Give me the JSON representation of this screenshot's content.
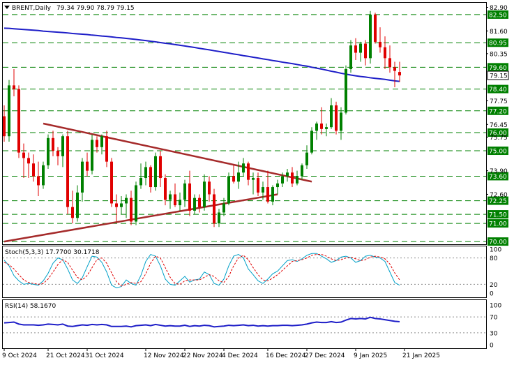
{
  "header": {
    "symbol": "BRENT,Daily",
    "ohlc": "79.34 79.90 78.79 79.15",
    "arrow_icon": "triangle-down-icon"
  },
  "colors": {
    "bull": "#008000",
    "bear": "#e00000",
    "ma": "#1e1ec8",
    "trendline": "#a52a2a",
    "level": "#008000",
    "stoch_main": "#00a0c8",
    "stoch_signal": "#e00000",
    "rsi": "#1e1ec8",
    "current_price_box": "#ffffff"
  },
  "chart_data": [
    {
      "type": "candlestick",
      "title": "BRENT,Daily",
      "ylim": [
        69.85,
        83.15
      ],
      "price_axis_ticks": [
        "82.90",
        "81.60",
        "80.95",
        "80.35",
        "79.60",
        "79.15",
        "78.40",
        "77.75",
        "77.20",
        "76.45",
        "76.00",
        "75.75",
        "75.00",
        "73.90",
        "73.60",
        "72.60",
        "72.25",
        "71.50",
        "71.00",
        "70.00"
      ],
      "levels": [
        82.5,
        80.95,
        79.6,
        78.4,
        77.2,
        76.0,
        75.0,
        73.6,
        72.25,
        71.5,
        71.0,
        70.0
      ],
      "level_labels": [
        "82.50",
        "80.95",
        "79.60",
        "78.40",
        "77.20",
        "76.00",
        "75.00",
        "73.60",
        "72.25",
        "71.50",
        "71.00",
        "70.00"
      ],
      "current_price": "79.15",
      "date_labels": [
        "9 Oct 2024",
        "21 Oct 2024",
        "31 Oct 2024",
        "12 Nov 2024",
        "22 Nov 2024",
        "4 Dec 2024",
        "16 Dec 2024",
        "27 Dec 2024",
        "9 Jan 2025",
        "21 Jan 2025"
      ],
      "candles": [
        [
          76.9,
          77.5,
          75.5,
          75.8
        ],
        [
          75.8,
          78.9,
          75.5,
          78.6
        ],
        [
          78.6,
          79.5,
          78.0,
          78.4
        ],
        [
          78.4,
          78.6,
          74.6,
          74.9
        ],
        [
          74.9,
          75.4,
          73.5,
          74.6
        ],
        [
          74.6,
          74.9,
          73.5,
          74.3
        ],
        [
          74.3,
          74.8,
          73.3,
          73.6
        ],
        [
          73.6,
          74.4,
          72.5,
          73.1
        ],
        [
          73.1,
          74.4,
          72.9,
          74.2
        ],
        [
          74.2,
          75.9,
          74.0,
          75.7
        ],
        [
          75.7,
          76.1,
          74.7,
          75.0
        ],
        [
          75.0,
          75.2,
          74.2,
          74.7
        ],
        [
          74.7,
          75.9,
          74.1,
          75.8
        ],
        [
          75.8,
          76.1,
          71.5,
          71.9
        ],
        [
          71.9,
          72.8,
          71.0,
          71.3
        ],
        [
          71.3,
          73.1,
          71.1,
          72.7
        ],
        [
          72.7,
          74.6,
          72.2,
          74.4
        ],
        [
          74.4,
          74.9,
          73.6,
          73.9
        ],
        [
          73.9,
          75.9,
          73.7,
          75.6
        ],
        [
          75.6,
          75.8,
          74.9,
          75.2
        ],
        [
          75.2,
          75.9,
          74.8,
          75.8
        ],
        [
          75.8,
          76.1,
          74.1,
          74.4
        ],
        [
          74.4,
          74.6,
          71.9,
          72.1
        ],
        [
          72.1,
          72.6,
          71.1,
          71.9
        ],
        [
          71.9,
          72.5,
          71.5,
          72.1
        ],
        [
          72.1,
          72.6,
          71.3,
          72.4
        ],
        [
          72.4,
          72.8,
          70.9,
          71.1
        ],
        [
          71.1,
          73.3,
          70.9,
          73.1
        ],
        [
          73.1,
          74.3,
          72.9,
          73.5
        ],
        [
          73.5,
          74.4,
          73.1,
          74.1
        ],
        [
          74.1,
          74.2,
          72.7,
          73.0
        ],
        [
          73.0,
          74.9,
          72.8,
          74.7
        ],
        [
          74.7,
          75.0,
          73.0,
          73.5
        ],
        [
          73.5,
          73.7,
          72.0,
          72.3
        ],
        [
          72.3,
          72.8,
          71.8,
          72.6
        ],
        [
          72.6,
          73.2,
          71.9,
          72.0
        ],
        [
          72.0,
          72.7,
          71.7,
          72.3
        ],
        [
          72.3,
          73.4,
          71.9,
          73.2
        ],
        [
          73.2,
          73.9,
          71.4,
          71.7
        ],
        [
          71.7,
          72.6,
          71.5,
          72.4
        ],
        [
          72.4,
          72.6,
          71.6,
          71.9
        ],
        [
          71.9,
          73.7,
          71.7,
          73.3
        ],
        [
          73.3,
          73.6,
          72.2,
          72.6
        ],
        [
          72.6,
          72.9,
          70.8,
          71.0
        ],
        [
          71.0,
          71.8,
          70.8,
          71.6
        ],
        [
          71.6,
          72.4,
          71.4,
          72.1
        ],
        [
          72.1,
          73.8,
          72.0,
          73.6
        ],
        [
          73.6,
          74.2,
          73.2,
          73.3
        ],
        [
          73.3,
          74.4,
          72.9,
          73.8
        ],
        [
          73.8,
          74.6,
          73.6,
          74.3
        ],
        [
          74.3,
          74.4,
          73.1,
          73.4
        ],
        [
          73.4,
          73.8,
          72.6,
          73.5
        ],
        [
          73.5,
          73.8,
          72.5,
          72.7
        ],
        [
          72.7,
          73.3,
          72.3,
          73.0
        ],
        [
          73.0,
          73.9,
          72.1,
          72.2
        ],
        [
          72.2,
          73.1,
          72.0,
          73.0
        ],
        [
          73.0,
          73.4,
          72.6,
          73.2
        ],
        [
          73.2,
          73.8,
          73.0,
          73.6
        ],
        [
          73.6,
          74.0,
          73.3,
          73.8
        ],
        [
          73.8,
          74.1,
          73.0,
          73.2
        ],
        [
          73.2,
          73.9,
          73.1,
          73.6
        ],
        [
          73.6,
          74.3,
          73.4,
          74.2
        ],
        [
          74.2,
          75.3,
          74.0,
          74.9
        ],
        [
          74.9,
          76.3,
          74.8,
          76.1
        ],
        [
          76.1,
          76.6,
          75.6,
          76.5
        ],
        [
          76.5,
          77.4,
          75.9,
          76.2
        ],
        [
          76.2,
          76.5,
          75.8,
          76.3
        ],
        [
          76.3,
          77.9,
          76.2,
          77.5
        ],
        [
          77.5,
          77.7,
          75.9,
          76.1
        ],
        [
          76.1,
          77.4,
          75.6,
          77.1
        ],
        [
          77.1,
          79.7,
          77.0,
          79.5
        ],
        [
          79.5,
          81.1,
          79.3,
          80.8
        ],
        [
          80.8,
          81.2,
          80.0,
          80.4
        ],
        [
          80.4,
          81.0,
          79.9,
          80.9
        ],
        [
          80.9,
          81.1,
          79.7,
          80.1
        ],
        [
          80.1,
          82.7,
          79.8,
          82.5
        ],
        [
          82.5,
          82.6,
          80.9,
          81.0
        ],
        [
          81.0,
          81.8,
          80.4,
          80.7
        ],
        [
          80.7,
          81.3,
          79.5,
          80.1
        ],
        [
          80.1,
          80.8,
          79.3,
          79.6
        ],
        [
          79.6,
          79.9,
          78.5,
          79.4
        ],
        [
          79.34,
          79.9,
          78.79,
          79.15
        ]
      ],
      "moving_average": [
        81.75,
        81.74,
        81.72,
        81.7,
        81.68,
        81.66,
        81.64,
        81.62,
        81.59,
        81.57,
        81.55,
        81.53,
        81.51,
        81.49,
        81.46,
        81.44,
        81.42,
        81.4,
        81.37,
        81.35,
        81.32,
        81.3,
        81.27,
        81.24,
        81.22,
        81.19,
        81.16,
        81.13,
        81.1,
        81.07,
        81.03,
        81.0,
        80.96,
        80.92,
        80.89,
        80.85,
        80.81,
        80.77,
        80.73,
        80.69,
        80.64,
        80.6,
        80.56,
        80.51,
        80.47,
        80.42,
        80.38,
        80.33,
        80.29,
        80.24,
        80.2,
        80.15,
        80.11,
        80.06,
        80.02,
        79.97,
        79.93,
        79.88,
        79.84,
        79.8,
        79.75,
        79.7,
        79.66,
        79.6,
        79.55,
        79.5,
        79.44,
        79.38,
        79.33,
        79.27,
        79.22,
        79.17,
        79.13,
        79.09,
        79.06,
        79.02,
        78.99,
        78.96,
        78.93,
        78.89,
        78.85,
        78.82
      ],
      "trendlines": [
        {
          "from": [
            8,
            76.5
          ],
          "to": [
            63,
            73.3
          ]
        },
        {
          "from": [
            0,
            70.0
          ],
          "to": [
            56,
            72.6
          ]
        }
      ]
    },
    {
      "type": "line",
      "title": "Stoch(5,3,3) 17.7700 30.1718",
      "ylim": [
        0,
        100
      ],
      "levels": [
        20,
        80
      ],
      "tick_labels": [
        "100",
        "80",
        "20",
        "0"
      ],
      "series": [
        {
          "name": "main",
          "values": [
            75,
            62,
            40,
            28,
            20,
            22,
            20,
            18,
            28,
            45,
            68,
            80,
            76,
            55,
            30,
            22,
            35,
            60,
            84,
            82,
            70,
            48,
            18,
            12,
            15,
            30,
            22,
            18,
            40,
            72,
            88,
            84,
            62,
            32,
            20,
            18,
            28,
            38,
            25,
            30,
            32,
            48,
            42,
            22,
            18,
            32,
            62,
            84,
            88,
            80,
            55,
            42,
            28,
            22,
            32,
            44,
            50,
            62,
            74,
            76,
            72,
            78,
            86,
            90,
            90,
            84,
            78,
            70,
            74,
            82,
            84,
            80,
            70,
            74,
            84,
            86,
            82,
            80,
            72,
            48,
            24,
            18
          ]
        },
        {
          "name": "signal",
          "values": [
            70,
            65,
            55,
            42,
            30,
            24,
            22,
            20,
            22,
            32,
            48,
            65,
            76,
            70,
            52,
            36,
            30,
            40,
            58,
            76,
            80,
            68,
            46,
            26,
            16,
            20,
            24,
            22,
            26,
            44,
            68,
            84,
            80,
            58,
            36,
            22,
            20,
            28,
            30,
            30,
            30,
            36,
            42,
            38,
            28,
            24,
            38,
            62,
            80,
            86,
            76,
            58,
            42,
            30,
            28,
            34,
            42,
            52,
            62,
            72,
            74,
            76,
            80,
            86,
            88,
            88,
            84,
            78,
            74,
            76,
            80,
            82,
            78,
            74,
            76,
            82,
            84,
            82,
            78,
            66,
            46,
            30
          ]
        }
      ]
    },
    {
      "type": "line",
      "title": "RSI(14) 58.1670",
      "ylim": [
        0,
        100
      ],
      "levels": [
        30,
        70
      ],
      "tick_labels": [
        "100",
        "70",
        "30",
        "0"
      ],
      "series": [
        {
          "name": "RSI",
          "values": [
            55,
            56,
            57,
            52,
            50,
            50,
            50,
            49,
            50,
            52,
            51,
            50,
            52,
            47,
            46,
            48,
            50,
            49,
            51,
            50,
            51,
            50,
            46,
            46,
            46,
            47,
            45,
            48,
            49,
            50,
            48,
            51,
            49,
            47,
            48,
            47,
            47,
            49,
            46,
            48,
            47,
            49,
            48,
            45,
            46,
            47,
            49,
            48,
            49,
            50,
            48,
            49,
            47,
            48,
            47,
            48,
            48,
            49,
            49,
            48,
            49,
            50,
            52,
            55,
            57,
            56,
            56,
            58,
            56,
            57,
            62,
            66,
            65,
            66,
            65,
            69,
            66,
            65,
            63,
            61,
            59,
            58
          ]
        }
      ]
    }
  ]
}
